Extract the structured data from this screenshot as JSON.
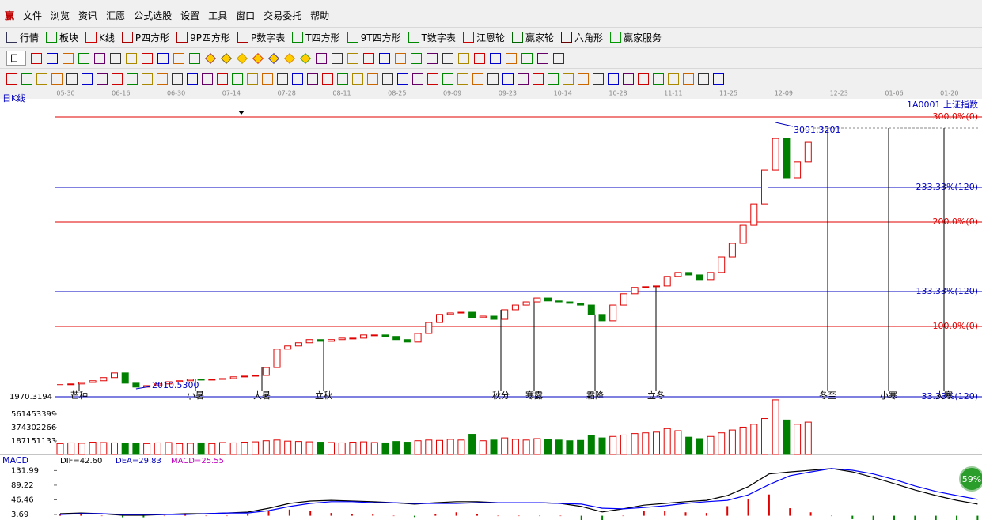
{
  "menu": {
    "logo": "赢",
    "items": [
      "文件",
      "浏览",
      "资讯",
      "汇愿",
      "公式选股",
      "设置",
      "工具",
      "窗口",
      "交易委托",
      "帮助"
    ]
  },
  "toolbar": [
    "行情",
    "板块",
    "K线",
    "P四方形",
    "9P四方形",
    "P数字表",
    "T四方形",
    "9T四方形",
    "T数字表",
    "江恩轮",
    "赢家轮",
    "六角形",
    "赢家服务"
  ],
  "period": "日",
  "chart": {
    "period_label": "日K线",
    "symbol": "1A0001 上证指数",
    "dates": [
      "05-30",
      "06-16",
      "06-30",
      "07-14",
      "07-28",
      "08-11",
      "08-25",
      "09-09",
      "09-23",
      "10-14",
      "10-28",
      "11-11",
      "11-25",
      "12-09",
      "12-23",
      "01-06",
      "01-20"
    ],
    "ylim": [
      1960,
      3190
    ],
    "closes": [
      2019,
      2022,
      2028,
      2035,
      2048,
      2067,
      2025,
      2009,
      2015,
      2022,
      2031,
      2035,
      2041,
      2038,
      2041,
      2044,
      2051,
      2054,
      2057,
      2089,
      2164,
      2177,
      2190,
      2203,
      2196,
      2203,
      2209,
      2209,
      2222,
      2222,
      2216,
      2203,
      2193,
      2228,
      2273,
      2306,
      2312,
      2315,
      2293,
      2299,
      2286,
      2325,
      2344,
      2357,
      2373,
      2361,
      2357,
      2351,
      2344,
      2306,
      2280,
      2344,
      2390,
      2416,
      2419,
      2422,
      2461,
      2477,
      2467,
      2448,
      2477,
      2541,
      2596,
      2670,
      2757,
      2896,
      3025,
      2864,
      2929,
      3009
    ],
    "up_color": "#e00000",
    "down_color": "#008000",
    "high_label": "3091.3201",
    "low_label": "2010.5300",
    "bottom_label": "1970.3194",
    "levels": [
      {
        "label": "300.0%(0)",
        "color": "#e00000"
      },
      {
        "label": "233.33%(120)",
        "color": "#0000c0"
      },
      {
        "label": "200.0%(0)",
        "color": "#e00000"
      },
      {
        "label": "133.33%(120)",
        "color": "#0000c0"
      },
      {
        "label": "100.0%(0)",
        "color": "#e00000"
      },
      {
        "label": "33.33%(120)",
        "color": "#0000c0"
      }
    ],
    "solar_terms": [
      "芒种",
      "小暑",
      "大暑",
      "立秋",
      "秋分",
      "寒露",
      "霜降",
      "立冬",
      "冬至",
      "小寒",
      "大寒"
    ],
    "volume": {
      "ylim": [
        0,
        770000000
      ],
      "yticks": [
        187151133,
        374302266,
        561453399
      ],
      "values": [
        150000000,
        160000000,
        155000000,
        170000000,
        165000000,
        160000000,
        150000000,
        155000000,
        150000000,
        160000000,
        165000000,
        150000000,
        155000000,
        160000000,
        150000000,
        165000000,
        160000000,
        170000000,
        175000000,
        190000000,
        200000000,
        185000000,
        180000000,
        175000000,
        170000000,
        165000000,
        160000000,
        170000000,
        175000000,
        165000000,
        160000000,
        180000000,
        170000000,
        190000000,
        200000000,
        195000000,
        210000000,
        200000000,
        280000000,
        190000000,
        200000000,
        230000000,
        210000000,
        200000000,
        220000000,
        210000000,
        200000000,
        190000000,
        195000000,
        260000000,
        230000000,
        250000000,
        270000000,
        290000000,
        300000000,
        310000000,
        360000000,
        330000000,
        240000000,
        220000000,
        250000000,
        300000000,
        340000000,
        380000000,
        420000000,
        500000000,
        760000000,
        480000000,
        420000000,
        450000000
      ]
    },
    "macd": {
      "title": "MACD",
      "dif_label": "DIF=42.60",
      "dea_label": "DEA=29.83",
      "macd_label": "MACD=25.55",
      "ylim": [
        -12.5,
        156
      ],
      "yticks": [
        3.69,
        46.46,
        89.22,
        131.99
      ],
      "dif_color": "#000000",
      "dea_color": "#0000ff",
      "dif": [
        6,
        8,
        6,
        1.4,
        1.4,
        3.7,
        6,
        6,
        8,
        10.6,
        22,
        36,
        43,
        45,
        43,
        41,
        38,
        34,
        38,
        41,
        41,
        38,
        38,
        38,
        36,
        27,
        11,
        20,
        31,
        36,
        41,
        45,
        59,
        85,
        122,
        128,
        133,
        138,
        128,
        112,
        94,
        75,
        59,
        45,
        34
      ],
      "dea": [
        3.7,
        6,
        6,
        3.7,
        3.7,
        3.7,
        3.7,
        6,
        8,
        8,
        15,
        27,
        36,
        41,
        41,
        38,
        38,
        36,
        36,
        36,
        38,
        38,
        38,
        38,
        36,
        34,
        22,
        20,
        24,
        29,
        36,
        41,
        45,
        61,
        91,
        117,
        128,
        138,
        133,
        122,
        106,
        87,
        71,
        59,
        48
      ],
      "macd": [
        4.6,
        4,
        0,
        -4.6,
        -4.6,
        0,
        4.6,
        0,
        0,
        5.2,
        14,
        18,
        14,
        8,
        4,
        6,
        0,
        -4,
        4,
        10,
        6,
        0,
        0,
        0,
        0,
        -14,
        -22,
        0,
        14,
        14,
        10,
        8,
        28,
        48,
        62,
        22,
        10,
        0,
        -10,
        -20,
        -24,
        -24,
        -24,
        -28,
        -28
      ]
    }
  },
  "badge": "59%"
}
